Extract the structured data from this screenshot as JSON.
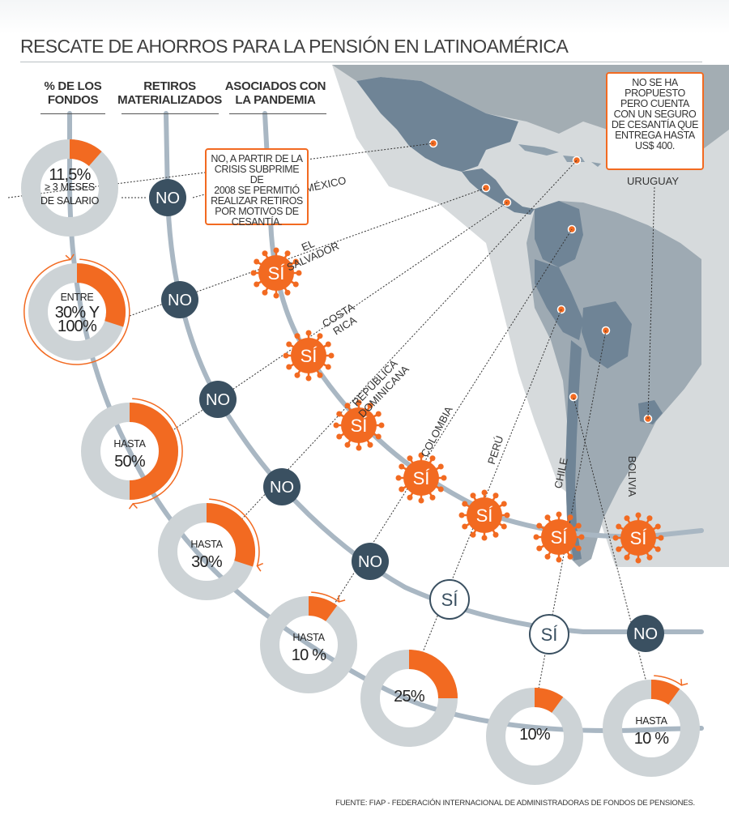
{
  "title": "RESCATE DE AHORROS PARA LA PENSIÓN EN LATINOAMÉRICA",
  "column_headers": {
    "funds": [
      "% DE LOS",
      "FONDOS"
    ],
    "withdrawals": [
      "RETIROS",
      "MATERIALIZADOS"
    ],
    "pandemic": [
      "ASOCIADOS CON",
      "LA PANDEMIA"
    ]
  },
  "notes": {
    "mexico": [
      "NO, A PARTIR DE LA",
      "CRISIS SUBPRIME DE",
      "2008 SE PERMITIÓ",
      "REALIZAR RETIROS",
      "POR MOTIVOS DE",
      "CESANTÍA."
    ],
    "uruguay": [
      "NO SE HA",
      "PROPUESTO",
      "PERO CUENTA",
      "CON UN SEGURO",
      "DE CESANTÍA QUE",
      "ENTREGA HASTA",
      "US$ 400."
    ]
  },
  "source": "FUENTE: FIAP - FEDERACIÓN INTERNACIONAL DE ADMINISTRADORAS DE FONDOS DE PENSIONES.",
  "colors": {
    "orange": "#f26a21",
    "light_orange": "#f9b16e",
    "gray": "#cdd3d6",
    "dark_slate": "#3a5061",
    "track": "#a9b7c3",
    "land": "#7f93a4",
    "land_light": "#9eaab3",
    "sea": "#d6dadc"
  },
  "countries": [
    {
      "name": [
        "MÉXICO"
      ],
      "withdrawal": "NO",
      "pandemic": "",
      "donut": {
        "pct": 11.5,
        "lines": [
          "11,5%",
          "≥ 3 MESES",
          "DE SALARIO"
        ],
        "range": false
      }
    },
    {
      "name": [
        "EL",
        "SALVADOR"
      ],
      "withdrawal": "NO",
      "pandemic": "SÍ",
      "donut": {
        "pct": 30,
        "pct_max": 100,
        "lines": [
          "ENTRE",
          "30% Y",
          "100%"
        ],
        "range": true
      }
    },
    {
      "name": [
        "COSTA",
        "RICA"
      ],
      "withdrawal": "NO",
      "pandemic": "SÍ",
      "donut": {
        "pct": 50,
        "lines": [
          "HASTA",
          "50%"
        ],
        "range": true
      }
    },
    {
      "name": [
        "REPÚBLICA",
        "DOMINICANA"
      ],
      "withdrawal": "NO",
      "pandemic": "SÍ",
      "donut": {
        "pct": 30,
        "lines": [
          "HASTA",
          "30%"
        ],
        "range": true
      }
    },
    {
      "name": [
        "COLOMBIA"
      ],
      "withdrawal": "NO",
      "pandemic": "SÍ",
      "donut": {
        "pct": 10,
        "lines": [
          "HASTA",
          "10 %"
        ],
        "range": true
      }
    },
    {
      "name": [
        "PERÚ"
      ],
      "withdrawal": "SÍ",
      "pandemic": "SÍ",
      "donut": {
        "pct": 25,
        "lines": [
          "25%"
        ],
        "range": false
      }
    },
    {
      "name": [
        "CHILE"
      ],
      "withdrawal": "SÍ",
      "pandemic": "SÍ",
      "donut": {
        "pct": 10,
        "lines": [
          "10%"
        ],
        "range": false
      }
    },
    {
      "name": [
        "BOLIVIA"
      ],
      "withdrawal": "NO",
      "pandemic": "SÍ",
      "donut": {
        "pct": 10,
        "lines": [
          "HASTA",
          "10 %"
        ],
        "range": true
      }
    }
  ],
  "uruguay_label": "URUGUAY",
  "chart_data": {
    "type": "table",
    "columns": [
      "% DE LOS FONDOS",
      "RETIROS MATERIALIZADOS",
      "ASOCIADOS CON LA PANDEMIA"
    ],
    "rows": [
      [
        "MÉXICO",
        "11,5% ≥ 3 MESES DE SALARIO",
        "NO",
        ""
      ],
      [
        "EL SALVADOR",
        "ENTRE 30% Y 100%",
        "NO",
        "SÍ"
      ],
      [
        "COSTA RICA",
        "HASTA 50%",
        "NO",
        "SÍ"
      ],
      [
        "REPÚBLICA DOMINICANA",
        "HASTA 30%",
        "NO",
        "SÍ"
      ],
      [
        "COLOMBIA",
        "HASTA 10 %",
        "NO",
        "SÍ"
      ],
      [
        "PERÚ",
        "25%",
        "SÍ",
        "SÍ"
      ],
      [
        "CHILE",
        "10%",
        "SÍ",
        "SÍ"
      ],
      [
        "BOLIVIA",
        "HASTA 10 %",
        "NO",
        "SÍ"
      ],
      [
        "URUGUAY",
        "",
        "",
        ""
      ]
    ]
  }
}
